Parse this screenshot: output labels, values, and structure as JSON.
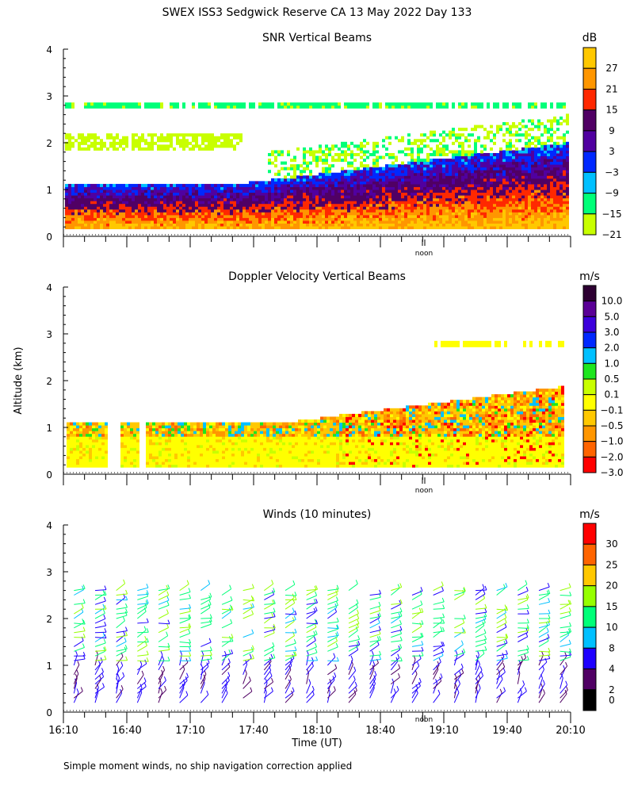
{
  "title": "SWEX ISS3 Sedgwick Reserve CA  13 May 2022 Day 133",
  "ylabel": "Altitude (km)",
  "xlabel": "Time (UT)",
  "footer": "Simple moment winds, no ship navigation correction applied",
  "noon_label": "noon",
  "chart_data": [
    {
      "type": "heatmap",
      "title": "SNR Vertical Beams",
      "unit": "dB",
      "x_range": [
        "16:10",
        "20:10"
      ],
      "ylim": [
        0,
        4
      ],
      "yticks": [
        "0",
        "1",
        "2",
        "3",
        "4"
      ],
      "colorbar": {
        "labels": [
          "27",
          "21",
          "15",
          "9",
          "3",
          "−3",
          "−9",
          "−15",
          "−21"
        ],
        "colors": [
          "#ffc800",
          "#ff9600",
          "#ff2800",
          "#500064",
          "#5000a0",
          "#0028ff",
          "#00c0ff",
          "#00ff78",
          "#c8ff00"
        ]
      }
    },
    {
      "type": "heatmap",
      "title": "Doppler Velocity Vertical Beams",
      "unit": "m/s",
      "x_range": [
        "16:10",
        "20:10"
      ],
      "ylim": [
        0,
        4
      ],
      "yticks": [
        "0",
        "1",
        "2",
        "3",
        "4"
      ],
      "colorbar": {
        "labels": [
          "10.0",
          "5.0",
          "3.0",
          "2.0",
          "1.0",
          "0.5",
          "0.1",
          "−0.1",
          "−0.5",
          "−1.0",
          "−2.0",
          "−3.0"
        ],
        "colors": [
          "#2d0032",
          "#5a0096",
          "#3c00dc",
          "#0028ff",
          "#00c0ff",
          "#1ee61e",
          "#c8ff00",
          "#ffff00",
          "#ffc800",
          "#ff9600",
          "#ff6400",
          "#ff0000"
        ]
      }
    },
    {
      "type": "wind-barbs",
      "title": "Winds (10 minutes)",
      "unit": "m/s",
      "x_range": [
        "16:10",
        "20:10"
      ],
      "xticks": [
        "16:10",
        "16:40",
        "17:10",
        "17:40",
        "18:10",
        "18:40",
        "19:10",
        "19:40",
        "20:10"
      ],
      "ylim": [
        0,
        4
      ],
      "yticks": [
        "0",
        "1",
        "2",
        "3",
        "4"
      ],
      "colorbar": {
        "labels": [
          "30",
          "25",
          "20",
          "15",
          "10",
          "8",
          "4",
          "2",
          "0"
        ],
        "colors": [
          "#ff0000",
          "#ff6400",
          "#ffc800",
          "#96ff00",
          "#00ff78",
          "#00c0ff",
          "#1e00ff",
          "#500064",
          "#000000"
        ]
      }
    }
  ]
}
